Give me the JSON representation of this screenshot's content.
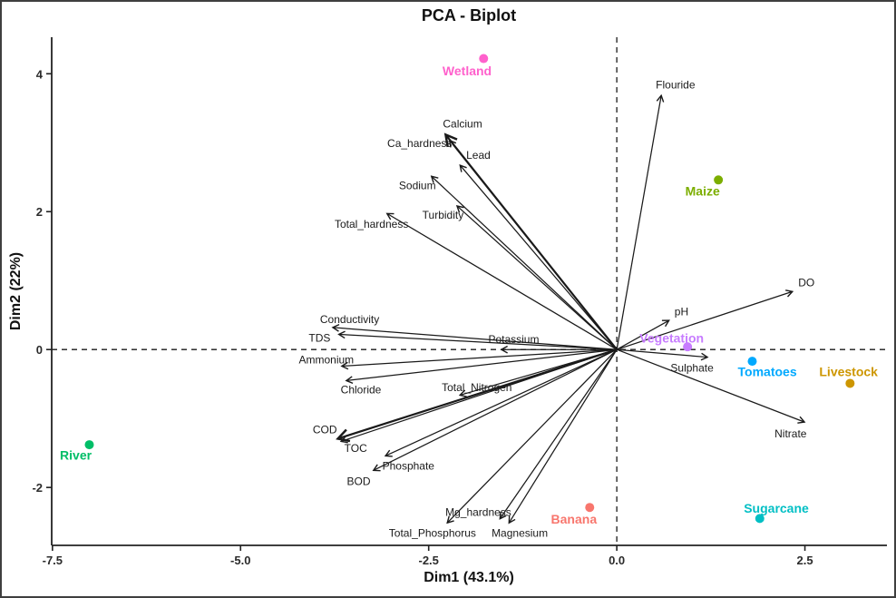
{
  "chart_data": {
    "type": "scatter",
    "title": "PCA - Biplot",
    "xlabel": "Dim1 (43.1%)",
    "ylabel": "Dim2 (22%)",
    "xlim": [
      -7.51,
      3.59
    ],
    "ylim": [
      -2.84,
      4.53
    ],
    "x_ticks": [
      -7.5,
      -5.0,
      -2.5,
      0.0,
      2.5
    ],
    "x_tick_labels": [
      "-7.5",
      "-5.0",
      "-2.5",
      "0.0",
      "2.5"
    ],
    "y_ticks": [
      4,
      2,
      0,
      -2
    ],
    "y_tick_labels": [
      "4",
      "2",
      "0",
      "-2"
    ],
    "grid": false,
    "legend": "none",
    "reference_lines": {
      "vertical_at_x": 0,
      "horizontal_at_y": 0,
      "style": "dashed"
    },
    "bold_arrows": [
      "Calcium",
      "COD"
    ],
    "sites": [
      {
        "name": "Wetland",
        "x": -1.77,
        "y": 4.22,
        "label_x": -1.99,
        "label_y": 4.04,
        "color": "#FF61CC"
      },
      {
        "name": "Maize",
        "x": 1.35,
        "y": 2.46,
        "label_x": 1.14,
        "label_y": 2.3,
        "color": "#7CAE00"
      },
      {
        "name": "Vegetation",
        "x": 0.94,
        "y": 0.04,
        "label_x": 0.73,
        "label_y": 0.17,
        "color": "#C77CFF"
      },
      {
        "name": "Tomatoes",
        "x": 1.8,
        "y": -0.17,
        "label_x": 2.0,
        "label_y": -0.32,
        "color": "#00A9FF"
      },
      {
        "name": "Livestock",
        "x": 3.1,
        "y": -0.49,
        "label_x": 3.08,
        "label_y": -0.32,
        "color": "#CD9600"
      },
      {
        "name": "River",
        "x": -7.01,
        "y": -1.38,
        "label_x": -7.19,
        "label_y": -1.53,
        "color": "#00BE67"
      },
      {
        "name": "Banana",
        "x": -0.36,
        "y": -2.29,
        "label_x": -0.57,
        "label_y": -2.46,
        "color": "#F8766D"
      },
      {
        "name": "Sugarcane",
        "x": 1.9,
        "y": -2.45,
        "label_x": 2.12,
        "label_y": -2.3,
        "color": "#00BFC4"
      }
    ],
    "loadings": [
      {
        "name": "Flouride",
        "x": 0.59,
        "y": 3.68,
        "label_x": 0.78,
        "label_y": 3.84
      },
      {
        "name": "Calcium",
        "x": -2.27,
        "y": 3.11,
        "label_x": -2.05,
        "label_y": 3.27
      },
      {
        "name": "Ca_hardness",
        "x": -2.22,
        "y": 3.03,
        "label_x": -2.62,
        "label_y": 2.99
      },
      {
        "name": "Lead",
        "x": -2.08,
        "y": 2.67,
        "label_x": -1.84,
        "label_y": 2.82
      },
      {
        "name": "Sodium",
        "x": -2.46,
        "y": 2.51,
        "label_x": -2.65,
        "label_y": 2.38
      },
      {
        "name": "Turbidity",
        "x": -2.12,
        "y": 2.08,
        "label_x": -2.31,
        "label_y": 1.95
      },
      {
        "name": "Total_hardness",
        "x": -3.05,
        "y": 1.97,
        "label_x": -3.26,
        "label_y": 1.82
      },
      {
        "name": "Conductivity",
        "x": -3.77,
        "y": 0.32,
        "label_x": -3.55,
        "label_y": 0.44
      },
      {
        "name": "TDS",
        "x": -3.69,
        "y": 0.22,
        "label_x": -3.95,
        "label_y": 0.17
      },
      {
        "name": "Potassium",
        "x": -1.53,
        "y": 0.0,
        "label_x": -1.37,
        "label_y": 0.15
      },
      {
        "name": "Ammonium",
        "x": -3.65,
        "y": -0.24,
        "label_x": -3.86,
        "label_y": -0.15
      },
      {
        "name": "Chloride",
        "x": -3.59,
        "y": -0.45,
        "label_x": -3.4,
        "label_y": -0.58
      },
      {
        "name": "Total_Nitrogen",
        "x": -2.08,
        "y": -0.66,
        "label_x": -1.86,
        "label_y": -0.55
      },
      {
        "name": "COD",
        "x": -3.7,
        "y": -1.29,
        "label_x": -3.88,
        "label_y": -1.16
      },
      {
        "name": "TOC",
        "x": -3.66,
        "y": -1.33,
        "label_x": -3.47,
        "label_y": -1.43
      },
      {
        "name": "Phosphate",
        "x": -3.07,
        "y": -1.54,
        "label_x": -2.77,
        "label_y": -1.69
      },
      {
        "name": "BOD",
        "x": -3.23,
        "y": -1.75,
        "label_x": -3.43,
        "label_y": -1.91
      },
      {
        "name": "Total_Phosphorus",
        "x": -2.25,
        "y": -2.51,
        "label_x": -2.45,
        "label_y": -2.66
      },
      {
        "name": "Mg_hardness",
        "x": -1.55,
        "y": -2.45,
        "label_x": -1.84,
        "label_y": -2.36
      },
      {
        "name": "Magnesium",
        "x": -1.43,
        "y": -2.51,
        "label_x": -1.29,
        "label_y": -2.66
      },
      {
        "name": "pH",
        "x": 0.69,
        "y": 0.42,
        "label_x": 0.86,
        "label_y": 0.55
      },
      {
        "name": "Sulphate",
        "x": 1.2,
        "y": -0.11,
        "label_x": 1.0,
        "label_y": -0.27
      },
      {
        "name": "DO",
        "x": 2.33,
        "y": 0.84,
        "label_x": 2.52,
        "label_y": 0.97
      },
      {
        "name": "Nitrate",
        "x": 2.49,
        "y": -1.05,
        "label_x": 2.31,
        "label_y": -1.22
      }
    ]
  }
}
